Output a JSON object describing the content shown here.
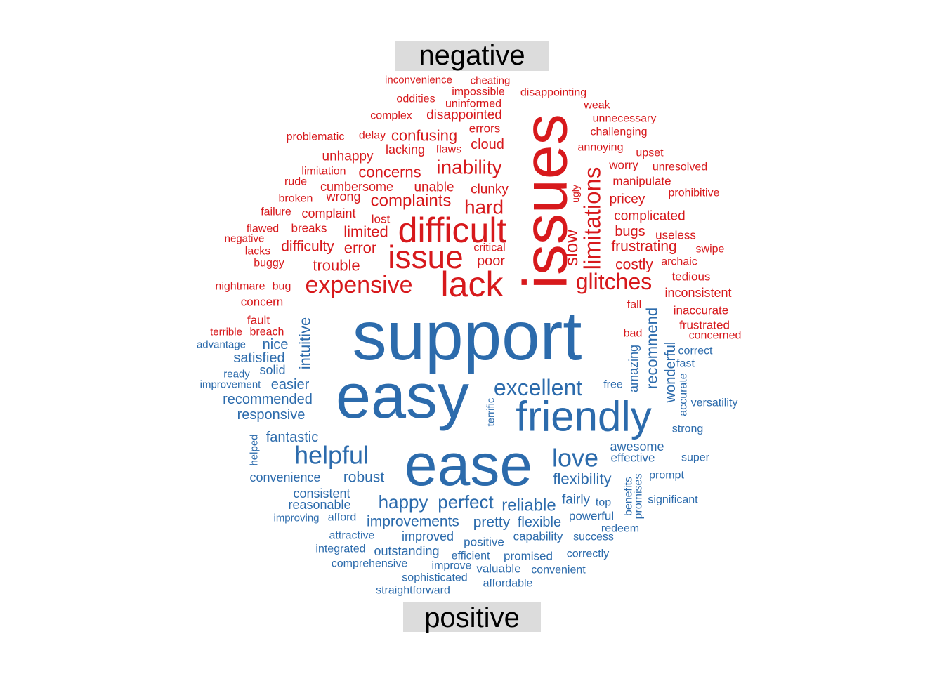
{
  "chart_data": {
    "type": "comparison-wordcloud",
    "groups": [
      {
        "name": "negative",
        "color": "#D7191C"
      },
      {
        "name": "positive",
        "color": "#2C6BAC"
      }
    ],
    "words": [
      {
        "text": "issues",
        "group": "negative",
        "size": 88,
        "rot": -90
      },
      {
        "text": "difficult",
        "group": "negative",
        "size": 50,
        "rot": 0
      },
      {
        "text": "lack",
        "group": "negative",
        "size": 50,
        "rot": 0
      },
      {
        "text": "issue",
        "group": "negative",
        "size": 46,
        "rot": 0
      },
      {
        "text": "limitations",
        "group": "negative",
        "size": 33,
        "rot": -90
      },
      {
        "text": "expensive",
        "group": "negative",
        "size": 34,
        "rot": 0
      },
      {
        "text": "glitches",
        "group": "negative",
        "size": 32,
        "rot": 0
      },
      {
        "text": "inability",
        "group": "negative",
        "size": 28,
        "rot": 0
      },
      {
        "text": "hard",
        "group": "negative",
        "size": 28,
        "rot": 0
      },
      {
        "text": "slow",
        "group": "negative",
        "size": 26,
        "rot": -90
      },
      {
        "text": "complaints",
        "group": "negative",
        "size": 24,
        "rot": 0
      },
      {
        "text": "trouble",
        "group": "negative",
        "size": 22,
        "rot": 0
      },
      {
        "text": "concerns",
        "group": "negative",
        "size": 22,
        "rot": 0
      },
      {
        "text": "confusing",
        "group": "negative",
        "size": 22,
        "rot": 0
      },
      {
        "text": "difficulty",
        "group": "negative",
        "size": 21,
        "rot": 0
      },
      {
        "text": "error",
        "group": "negative",
        "size": 22,
        "rot": 0
      },
      {
        "text": "limited",
        "group": "negative",
        "size": 22,
        "rot": 0
      },
      {
        "text": "frustrating",
        "group": "negative",
        "size": 21,
        "rot": 0
      },
      {
        "text": "costly",
        "group": "negative",
        "size": 21,
        "rot": 0
      },
      {
        "text": "poor",
        "group": "negative",
        "size": 20,
        "rot": 0
      },
      {
        "text": "cloud",
        "group": "negative",
        "size": 20,
        "rot": 0
      },
      {
        "text": "clunky",
        "group": "negative",
        "size": 19,
        "rot": 0
      },
      {
        "text": "unable",
        "group": "negative",
        "size": 19,
        "rot": 0
      },
      {
        "text": "bugs",
        "group": "negative",
        "size": 20,
        "rot": 0
      },
      {
        "text": "pricey",
        "group": "negative",
        "size": 19,
        "rot": 0
      },
      {
        "text": "complicated",
        "group": "negative",
        "size": 19,
        "rot": 0
      },
      {
        "text": "disappointed",
        "group": "negative",
        "size": 19,
        "rot": 0
      },
      {
        "text": "unhappy",
        "group": "negative",
        "size": 19,
        "rot": 0
      },
      {
        "text": "cumbersome",
        "group": "negative",
        "size": 18,
        "rot": 0
      },
      {
        "text": "wrong",
        "group": "negative",
        "size": 18,
        "rot": 0
      },
      {
        "text": "complaint",
        "group": "negative",
        "size": 18,
        "rot": 0
      },
      {
        "text": "lacking",
        "group": "negative",
        "size": 18,
        "rot": 0
      },
      {
        "text": "breaks",
        "group": "negative",
        "size": 17,
        "rot": 0
      },
      {
        "text": "worry",
        "group": "negative",
        "size": 17,
        "rot": 0
      },
      {
        "text": "manipulate",
        "group": "negative",
        "size": 17,
        "rot": 0
      },
      {
        "text": "inconsistent",
        "group": "negative",
        "size": 18,
        "rot": 0
      },
      {
        "text": "tedious",
        "group": "negative",
        "size": 17,
        "rot": 0
      },
      {
        "text": "inaccurate",
        "group": "negative",
        "size": 17,
        "rot": 0
      },
      {
        "text": "frustrated",
        "group": "negative",
        "size": 17,
        "rot": 0
      },
      {
        "text": "useless",
        "group": "negative",
        "size": 17,
        "rot": 0
      },
      {
        "text": "concern",
        "group": "negative",
        "size": 17,
        "rot": 0
      },
      {
        "text": "fault",
        "group": "negative",
        "size": 17,
        "rot": 0
      },
      {
        "text": "errors",
        "group": "negative",
        "size": 17,
        "rot": 0
      },
      {
        "text": "lost",
        "group": "negative",
        "size": 17,
        "rot": 0
      },
      {
        "text": "critical",
        "group": "negative",
        "size": 16,
        "rot": 0
      },
      {
        "text": "buggy",
        "group": "negative",
        "size": 16,
        "rot": 0
      },
      {
        "text": "limitation",
        "group": "negative",
        "size": 16,
        "rot": 0
      },
      {
        "text": "impossible",
        "group": "negative",
        "size": 16,
        "rot": 0
      },
      {
        "text": "uninformed",
        "group": "negative",
        "size": 16,
        "rot": 0
      },
      {
        "text": "oddities",
        "group": "negative",
        "size": 16,
        "rot": 0
      },
      {
        "text": "weak",
        "group": "negative",
        "size": 16,
        "rot": 0
      },
      {
        "text": "unnecessary",
        "group": "negative",
        "size": 16,
        "rot": 0
      },
      {
        "text": "challenging",
        "group": "negative",
        "size": 16,
        "rot": 0
      },
      {
        "text": "disappointing",
        "group": "negative",
        "size": 16,
        "rot": 0
      },
      {
        "text": "complex",
        "group": "negative",
        "size": 16,
        "rot": 0
      },
      {
        "text": "problematic",
        "group": "negative",
        "size": 16,
        "rot": 0
      },
      {
        "text": "delay",
        "group": "negative",
        "size": 16,
        "rot": 0
      },
      {
        "text": "flaws",
        "group": "negative",
        "size": 16,
        "rot": 0
      },
      {
        "text": "annoying",
        "group": "negative",
        "size": 16,
        "rot": 0
      },
      {
        "text": "upset",
        "group": "negative",
        "size": 16,
        "rot": 0
      },
      {
        "text": "unresolved",
        "group": "negative",
        "size": 16,
        "rot": 0
      },
      {
        "text": "prohibitive",
        "group": "negative",
        "size": 16,
        "rot": 0
      },
      {
        "text": "broken",
        "group": "negative",
        "size": 16,
        "rot": 0
      },
      {
        "text": "rude",
        "group": "negative",
        "size": 16,
        "rot": 0
      },
      {
        "text": "failure",
        "group": "negative",
        "size": 16,
        "rot": 0
      },
      {
        "text": "flawed",
        "group": "negative",
        "size": 16,
        "rot": 0
      },
      {
        "text": "negative",
        "group": "negative",
        "size": 15,
        "rot": 0
      },
      {
        "text": "lacks",
        "group": "negative",
        "size": 16,
        "rot": 0
      },
      {
        "text": "nightmare",
        "group": "negative",
        "size": 16,
        "rot": 0
      },
      {
        "text": "bug",
        "group": "negative",
        "size": 16,
        "rot": 0
      },
      {
        "text": "terrible",
        "group": "negative",
        "size": 15,
        "rot": 0
      },
      {
        "text": "breach",
        "group": "negative",
        "size": 16,
        "rot": 0
      },
      {
        "text": "swipe",
        "group": "negative",
        "size": 16,
        "rot": 0
      },
      {
        "text": "archaic",
        "group": "negative",
        "size": 16,
        "rot": 0
      },
      {
        "text": "fall",
        "group": "negative",
        "size": 16,
        "rot": 0
      },
      {
        "text": "bad",
        "group": "negative",
        "size": 16,
        "rot": 0
      },
      {
        "text": "concerned",
        "group": "negative",
        "size": 16,
        "rot": 0
      },
      {
        "text": "inconvenience",
        "group": "negative",
        "size": 15,
        "rot": 0
      },
      {
        "text": "cheating",
        "group": "negative",
        "size": 15,
        "rot": 0
      },
      {
        "text": "ugly",
        "group": "negative",
        "size": 14,
        "rot": -90
      },
      {
        "text": "support",
        "group": "positive",
        "size": 98,
        "rot": 0
      },
      {
        "text": "easy",
        "group": "positive",
        "size": 90,
        "rot": 0
      },
      {
        "text": "ease",
        "group": "positive",
        "size": 84,
        "rot": 0
      },
      {
        "text": "friendly",
        "group": "positive",
        "size": 60,
        "rot": 0
      },
      {
        "text": "helpful",
        "group": "positive",
        "size": 36,
        "rot": 0
      },
      {
        "text": "love",
        "group": "positive",
        "size": 36,
        "rot": 0
      },
      {
        "text": "excellent",
        "group": "positive",
        "size": 32,
        "rot": 0
      },
      {
        "text": "happy",
        "group": "positive",
        "size": 26,
        "rot": 0
      },
      {
        "text": "perfect",
        "group": "positive",
        "size": 26,
        "rot": 0
      },
      {
        "text": "reliable",
        "group": "positive",
        "size": 24,
        "rot": 0
      },
      {
        "text": "recommend",
        "group": "positive",
        "size": 22,
        "rot": -90
      },
      {
        "text": "intuitive",
        "group": "positive",
        "size": 22,
        "rot": -90
      },
      {
        "text": "flexibility",
        "group": "positive",
        "size": 22,
        "rot": 0
      },
      {
        "text": "improvements",
        "group": "positive",
        "size": 21,
        "rot": 0
      },
      {
        "text": "pretty",
        "group": "positive",
        "size": 21,
        "rot": 0
      },
      {
        "text": "robust",
        "group": "positive",
        "size": 21,
        "rot": 0
      },
      {
        "text": "flexible",
        "group": "positive",
        "size": 20,
        "rot": 0
      },
      {
        "text": "nice",
        "group": "positive",
        "size": 20,
        "rot": 0
      },
      {
        "text": "easier",
        "group": "positive",
        "size": 20,
        "rot": 0
      },
      {
        "text": "fantastic",
        "group": "positive",
        "size": 20,
        "rot": 0
      },
      {
        "text": "responsive",
        "group": "positive",
        "size": 20,
        "rot": 0
      },
      {
        "text": "recommended",
        "group": "positive",
        "size": 20,
        "rot": 0
      },
      {
        "text": "satisfied",
        "group": "positive",
        "size": 20,
        "rot": 0
      },
      {
        "text": "wonderful",
        "group": "positive",
        "size": 20,
        "rot": -90
      },
      {
        "text": "fairly",
        "group": "positive",
        "size": 19,
        "rot": 0
      },
      {
        "text": "awesome",
        "group": "positive",
        "size": 18,
        "rot": 0
      },
      {
        "text": "amazing",
        "group": "positive",
        "size": 18,
        "rot": -90
      },
      {
        "text": "consistent",
        "group": "positive",
        "size": 18,
        "rot": 0
      },
      {
        "text": "reasonable",
        "group": "positive",
        "size": 18,
        "rot": 0
      },
      {
        "text": "convenience",
        "group": "positive",
        "size": 18,
        "rot": 0
      },
      {
        "text": "solid",
        "group": "positive",
        "size": 18,
        "rot": 0
      },
      {
        "text": "outstanding",
        "group": "positive",
        "size": 18,
        "rot": 0
      },
      {
        "text": "improved",
        "group": "positive",
        "size": 18,
        "rot": 0
      },
      {
        "text": "effective",
        "group": "positive",
        "size": 17,
        "rot": 0
      },
      {
        "text": "powerful",
        "group": "positive",
        "size": 17,
        "rot": 0
      },
      {
        "text": "positive",
        "group": "positive",
        "size": 17,
        "rot": 0
      },
      {
        "text": "capability",
        "group": "positive",
        "size": 17,
        "rot": 0
      },
      {
        "text": "promised",
        "group": "positive",
        "size": 17,
        "rot": 0
      },
      {
        "text": "valuable",
        "group": "positive",
        "size": 17,
        "rot": 0
      },
      {
        "text": "free",
        "group": "positive",
        "size": 16,
        "rot": 0
      },
      {
        "text": "fast",
        "group": "positive",
        "size": 16,
        "rot": 0
      },
      {
        "text": "correct",
        "group": "positive",
        "size": 16,
        "rot": 0
      },
      {
        "text": "accurate",
        "group": "positive",
        "size": 16,
        "rot": -90
      },
      {
        "text": "versatility",
        "group": "positive",
        "size": 16,
        "rot": 0
      },
      {
        "text": "strong",
        "group": "positive",
        "size": 16,
        "rot": 0
      },
      {
        "text": "super",
        "group": "positive",
        "size": 16,
        "rot": 0
      },
      {
        "text": "prompt",
        "group": "positive",
        "size": 16,
        "rot": 0
      },
      {
        "text": "significant",
        "group": "positive",
        "size": 16,
        "rot": 0
      },
      {
        "text": "benefits",
        "group": "positive",
        "size": 16,
        "rot": -90
      },
      {
        "text": "promises",
        "group": "positive",
        "size": 16,
        "rot": -90
      },
      {
        "text": "top",
        "group": "positive",
        "size": 16,
        "rot": 0
      },
      {
        "text": "redeem",
        "group": "positive",
        "size": 16,
        "rot": 0
      },
      {
        "text": "success",
        "group": "positive",
        "size": 16,
        "rot": 0
      },
      {
        "text": "correctly",
        "group": "positive",
        "size": 16,
        "rot": 0
      },
      {
        "text": "convenient",
        "group": "positive",
        "size": 16,
        "rot": 0
      },
      {
        "text": "affordable",
        "group": "positive",
        "size": 16,
        "rot": 0
      },
      {
        "text": "efficient",
        "group": "positive",
        "size": 16,
        "rot": 0
      },
      {
        "text": "improve",
        "group": "positive",
        "size": 16,
        "rot": 0
      },
      {
        "text": "sophisticated",
        "group": "positive",
        "size": 16,
        "rot": 0
      },
      {
        "text": "straightforward",
        "group": "positive",
        "size": 16,
        "rot": 0
      },
      {
        "text": "comprehensive",
        "group": "positive",
        "size": 16,
        "rot": 0
      },
      {
        "text": "integrated",
        "group": "positive",
        "size": 16,
        "rot": 0
      },
      {
        "text": "attractive",
        "group": "positive",
        "size": 16,
        "rot": 0
      },
      {
        "text": "improving",
        "group": "positive",
        "size": 15,
        "rot": 0
      },
      {
        "text": "afford",
        "group": "positive",
        "size": 16,
        "rot": 0
      },
      {
        "text": "terrific",
        "group": "positive",
        "size": 15,
        "rot": -90
      },
      {
        "text": "helped",
        "group": "positive",
        "size": 15,
        "rot": -90
      },
      {
        "text": "improvement",
        "group": "positive",
        "size": 15,
        "rot": 0
      },
      {
        "text": "ready",
        "group": "positive",
        "size": 15,
        "rot": 0
      },
      {
        "text": "advantage",
        "group": "positive",
        "size": 15,
        "rot": 0
      }
    ]
  }
}
